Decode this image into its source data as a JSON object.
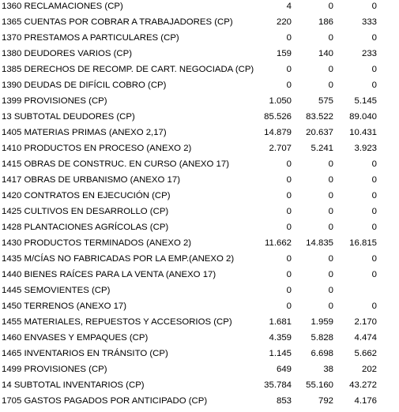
{
  "rows": [
    {
      "label": "1360 RECLAMACIONES (CP)",
      "v1": "4",
      "v2": "0",
      "v3": "0"
    },
    {
      "label": "1365 CUENTAS POR COBRAR A TRABAJADORES (CP)",
      "v1": "220",
      "v2": "186",
      "v3": "333"
    },
    {
      "label": "1370 PRESTAMOS A PARTICULARES (CP)",
      "v1": "0",
      "v2": "0",
      "v3": "0"
    },
    {
      "label": "1380 DEUDORES VARIOS (CP)",
      "v1": "159",
      "v2": "140",
      "v3": "233"
    },
    {
      "label": "1385 DERECHOS DE RECOMP. DE CART. NEGOCIADA (CP)",
      "v1": "0",
      "v2": "0",
      "v3": "0"
    },
    {
      "label": "1390 DEUDAS DE DIFÍCIL COBRO (CP)",
      "v1": "0",
      "v2": "0",
      "v3": "0"
    },
    {
      "label": "1399 PROVISIONES (CP)",
      "v1": "1.050",
      "v2": "575",
      "v3": "5.145"
    },
    {
      "label": "13 SUBTOTAL DEUDORES (CP)",
      "v1": "85.526",
      "v2": "83.522",
      "v3": "89.040"
    },
    {
      "label": "1405 MATERIAS PRIMAS (ANEXO 2,17)",
      "v1": "14.879",
      "v2": "20.637",
      "v3": "10.431"
    },
    {
      "label": "1410 PRODUCTOS EN PROCESO (ANEXO 2)",
      "v1": "2.707",
      "v2": "5.241",
      "v3": "3.923"
    },
    {
      "label": "1415 OBRAS DE CONSTRUC. EN CURSO (ANEXO 17)",
      "v1": "0",
      "v2": "0",
      "v3": "0"
    },
    {
      "label": "1417 OBRAS DE URBANISMO (ANEXO 17)",
      "v1": "0",
      "v2": "0",
      "v3": "0"
    },
    {
      "label": "1420 CONTRATOS EN EJECUCIÓN (CP)",
      "v1": "0",
      "v2": "0",
      "v3": "0"
    },
    {
      "label": "1425 CULTIVOS EN DESARROLLO (CP)",
      "v1": "0",
      "v2": "0",
      "v3": "0"
    },
    {
      "label": "1428 PLANTACIONES AGRÍCOLAS (CP)",
      "v1": "0",
      "v2": "0",
      "v3": "0"
    },
    {
      "label": "1430 PRODUCTOS TERMINADOS (ANEXO 2)",
      "v1": "11.662",
      "v2": "14.835",
      "v3": "16.815"
    },
    {
      "label": "1435 M/CÍAS NO FABRICADAS POR LA EMP.(ANEXO 2)",
      "v1": "0",
      "v2": "0",
      "v3": "0"
    },
    {
      "label": "1440 BIENES RAÍCES PARA LA VENTA (ANEXO 17)",
      "v1": "0",
      "v2": "0",
      "v3": "0"
    },
    {
      "label": "1445 SEMOVIENTES (CP)",
      "v1": "0",
      "v2": "0",
      "v3": ""
    },
    {
      "label": "1450 TERRENOS (ANEXO 17)",
      "v1": "0",
      "v2": "0",
      "v3": "0"
    },
    {
      "label": "1455 MATERIALES, REPUESTOS Y ACCESORIOS (CP)",
      "v1": "1.681",
      "v2": "1.959",
      "v3": "2.170"
    },
    {
      "label": "1460 ENVASES Y EMPAQUES (CP)",
      "v1": "4.359",
      "v2": "5.828",
      "v3": "4.474"
    },
    {
      "label": "1465 INVENTARIOS EN TRÁNSITO (CP)",
      "v1": "1.145",
      "v2": "6.698",
      "v3": "5.662"
    },
    {
      "label": "1499 PROVISIONES (CP)",
      "v1": "649",
      "v2": "38",
      "v3": "202"
    },
    {
      "label": "14 SUBTOTAL INVENTARIOS (CP)",
      "v1": "35.784",
      "v2": "55.160",
      "v3": "43.272"
    },
    {
      "label": "1705 GASTOS PAGADOS POR ANTICIPADO (CP)",
      "v1": "853",
      "v2": "792",
      "v3": "4.176"
    }
  ]
}
